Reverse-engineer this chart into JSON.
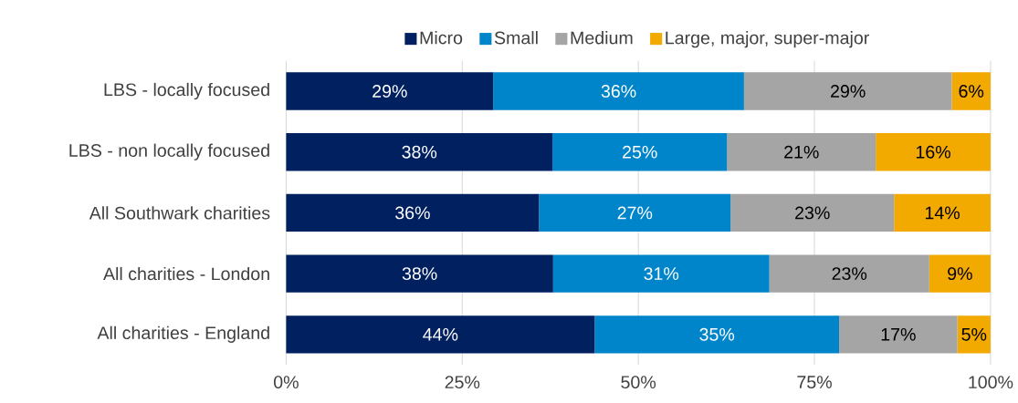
{
  "chart_data": {
    "type": "bar",
    "orientation": "horizontal",
    "stacked": true,
    "categories": [
      "LBS - locally focused",
      "LBS - non locally focused",
      "All Southwark charities",
      "All charities - London",
      "All charities - England"
    ],
    "series": [
      {
        "name": "Micro",
        "color": "#002060",
        "values": [
          29.4,
          37.8,
          35.9,
          37.9,
          43.8
        ],
        "value_labels": [
          "29%",
          "38%",
          "36%",
          "38%",
          "44%"
        ]
      },
      {
        "name": "Small",
        "color": "#0085ca",
        "values": [
          35.6,
          24.8,
          27.2,
          30.7,
          34.7
        ],
        "value_labels": [
          "36%",
          "25%",
          "27%",
          "31%",
          "35%"
        ]
      },
      {
        "name": "Medium",
        "color": "#a5a5a5",
        "values": [
          29.5,
          21.1,
          23.2,
          22.7,
          16.8
        ],
        "value_labels": [
          "29%",
          "21%",
          "23%",
          "23%",
          "17%"
        ]
      },
      {
        "name": "Large, major, super-major",
        "color": "#f2a900",
        "values": [
          5.5,
          16.3,
          13.7,
          8.7,
          4.7
        ],
        "value_labels": [
          "6%",
          "16%",
          "14%",
          "9%",
          "5%"
        ]
      }
    ],
    "xlim": [
      0,
      100
    ],
    "xticks": [
      {
        "value": 0,
        "label": "0%"
      },
      {
        "value": 25,
        "label": "25%"
      },
      {
        "value": 50,
        "label": "50%"
      },
      {
        "value": 75,
        "label": "75%"
      },
      {
        "value": 100,
        "label": "100%"
      }
    ],
    "grid": "x",
    "legend": "top"
  }
}
